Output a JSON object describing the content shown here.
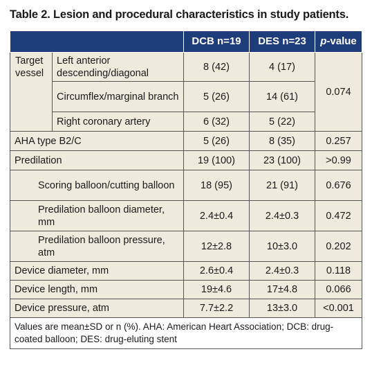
{
  "title": "Table 2. Lesion and procedural characteristics in study patients.",
  "header": {
    "dcb": "DCB n=19",
    "des": "DES n=23",
    "p_italic": "p",
    "p_suffix": "-value"
  },
  "target_vessel": {
    "label": "Target vessel",
    "p": "0.074",
    "rows": [
      {
        "label": "Left anterior descending/diagonal",
        "dcb": "8 (42)",
        "des": "4 (17)"
      },
      {
        "label": "Circumflex/marginal branch",
        "dcb": "5 (26)",
        "des": "14 (61)"
      },
      {
        "label": "Right coronary artery",
        "dcb": "6 (32)",
        "des": "5 (22)"
      }
    ]
  },
  "rows": [
    {
      "label": "AHA type B2/C",
      "dcb": "5 (26)",
      "des": "8 (35)",
      "p": "0.257"
    },
    {
      "label": "Predilation",
      "dcb": "19 (100)",
      "des": "23 (100)",
      "p": ">0.99"
    },
    {
      "label": "Scoring balloon/cutting balloon",
      "dcb": "18 (95)",
      "des": "21 (91)",
      "p": "0.676"
    },
    {
      "label": "Predilation balloon diameter, mm",
      "dcb": "2.4±0.4",
      "des": "2.4±0.3",
      "p": "0.472"
    },
    {
      "label": "Predilation balloon pressure, atm",
      "dcb": "12±2.8",
      "des": "10±3.0",
      "p": "0.202"
    },
    {
      "label": "Device diameter, mm",
      "dcb": "2.6±0.4",
      "des": "2.4±0.3",
      "p": "0.118"
    },
    {
      "label": "Device length, mm",
      "dcb": "19±4.6",
      "des": "17±4.8",
      "p": "0.066"
    },
    {
      "label": "Device pressure, atm",
      "dcb": "7.7±2.2",
      "des": "13±3.0",
      "p": "<0.001"
    }
  ],
  "footnote": "Values are mean±SD or n (%). AHA: American Heart Association; DCB: drug-coated balloon; DES: drug-eluting stent"
}
